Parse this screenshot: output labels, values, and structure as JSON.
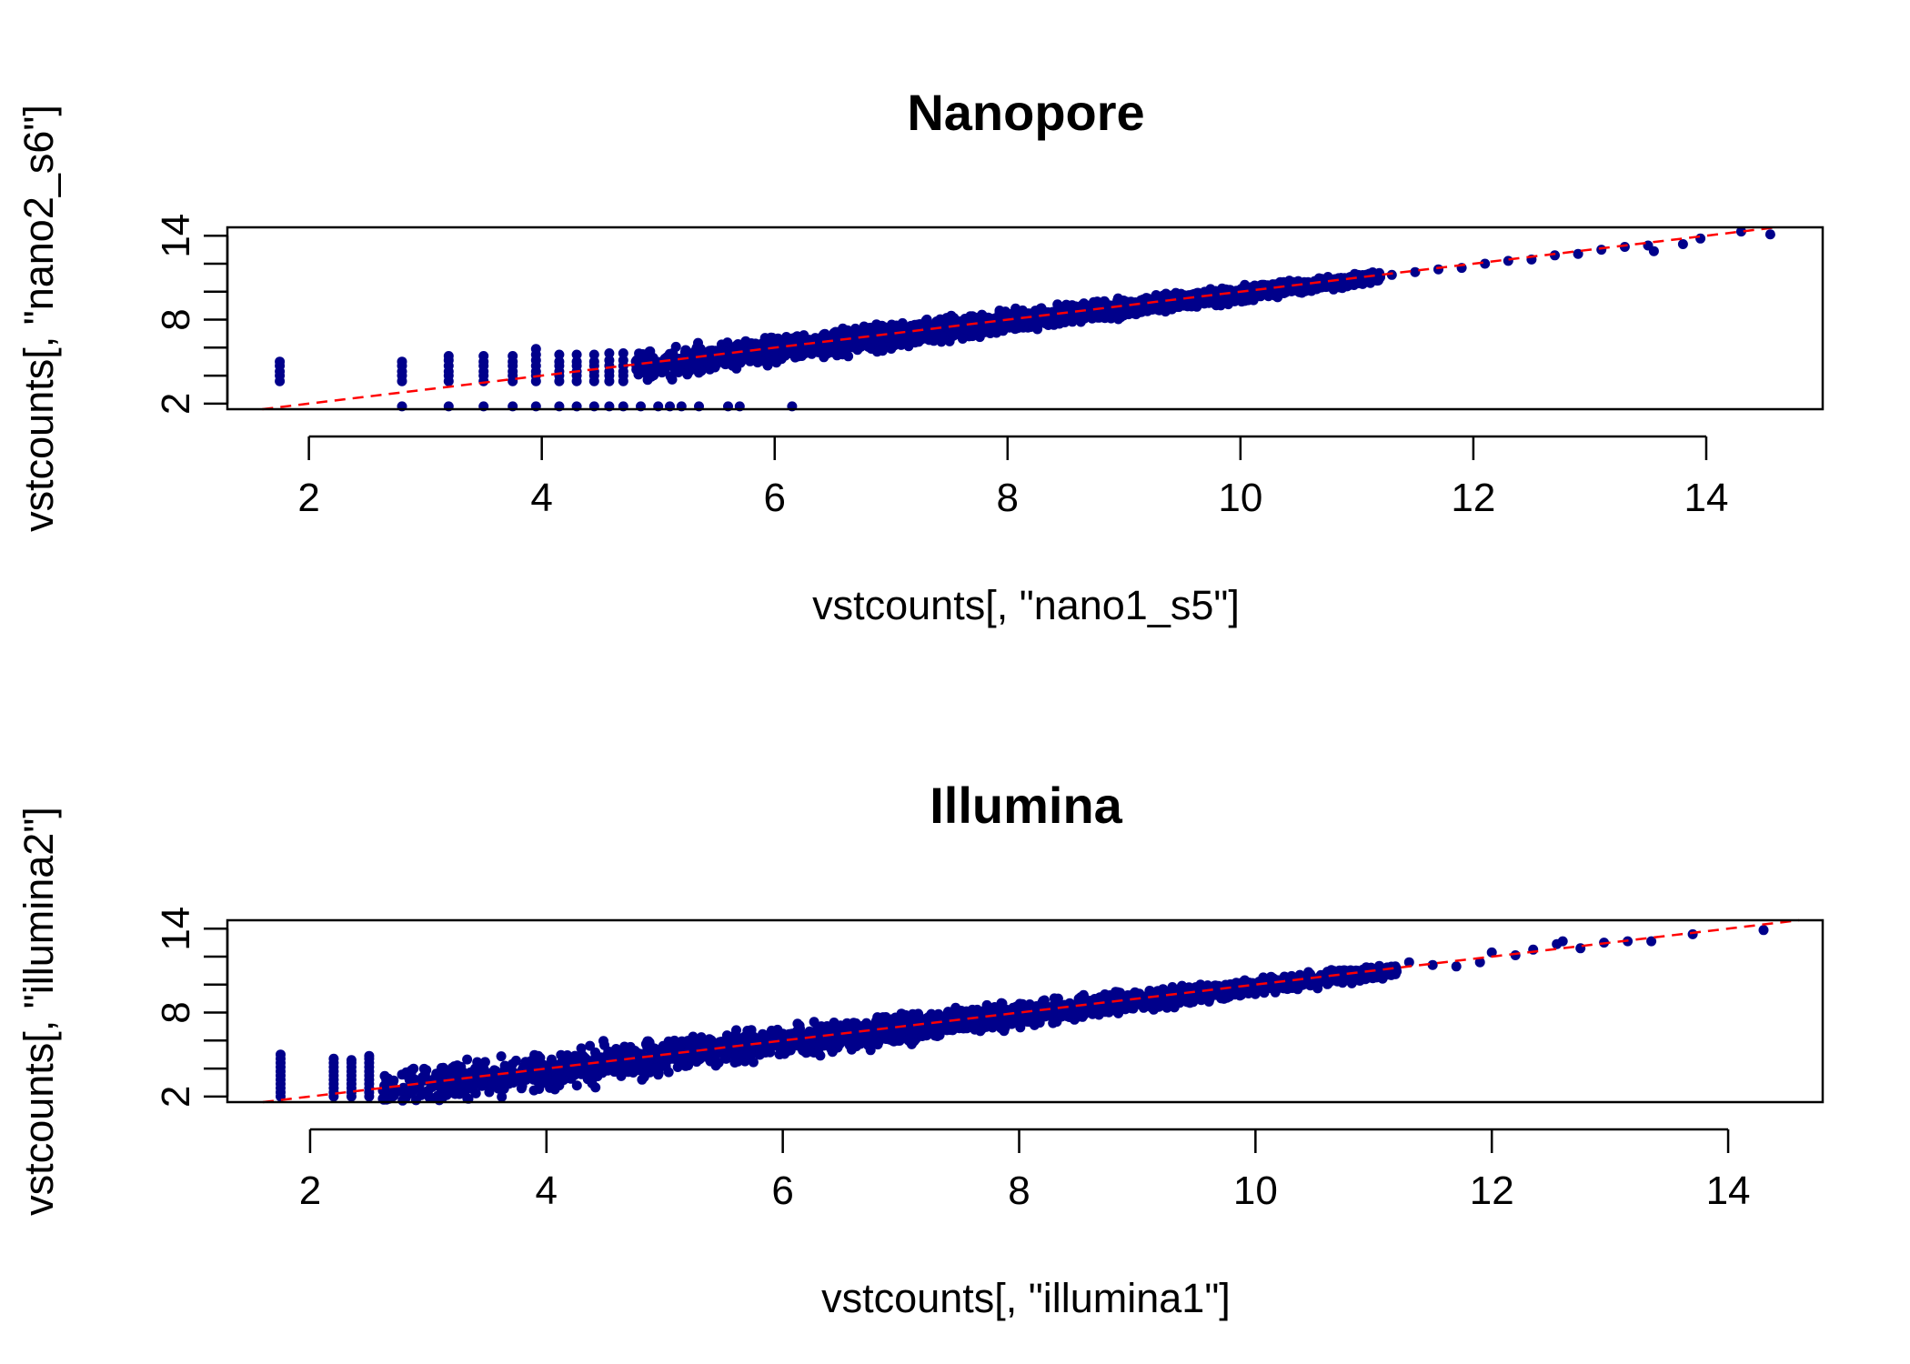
{
  "colors": {
    "points": "#00008b",
    "reference_line": "#ff0000",
    "axes": "#000000",
    "background": "#ffffff"
  },
  "chart_data": [
    {
      "type": "scatter",
      "title": "Nanopore",
      "xlabel": "vstcounts[, \"nano1_s5\"]",
      "ylabel": "vstcounts[, \"nano2_s6\"]",
      "xlim": [
        1.3,
        15.0
      ],
      "ylim": [
        1.6,
        14.6
      ],
      "xticks": [
        2,
        4,
        6,
        8,
        10,
        12,
        14
      ],
      "yticks": [
        2,
        4,
        6,
        8,
        10,
        12,
        14
      ],
      "ytick_labels": [
        "2",
        "8",
        "14"
      ],
      "grid": false,
      "legend": "none",
      "reference_line": {
        "slope": 1,
        "intercept": 0,
        "style": "dashed",
        "color": "#ff0000"
      },
      "point_color": "#00008b",
      "columns": [
        {
          "x": 1.75,
          "y": [
            3.6,
            4.0,
            4.3,
            4.7,
            5.0
          ]
        },
        {
          "x": 2.8,
          "y": [
            1.8,
            3.6,
            4.0,
            4.3,
            4.7,
            5.0
          ]
        },
        {
          "x": 3.2,
          "y": [
            1.8,
            3.6,
            4.0,
            4.3,
            4.7,
            5.1,
            5.4
          ]
        },
        {
          "x": 3.5,
          "y": [
            1.8,
            3.6,
            4.0,
            4.3,
            4.7,
            5.0,
            5.4
          ]
        },
        {
          "x": 3.75,
          "y": [
            1.8,
            3.6,
            4.0,
            4.3,
            4.7,
            5.0,
            5.4
          ]
        },
        {
          "x": 3.95,
          "y": [
            1.8,
            3.6,
            4.0,
            4.3,
            4.7,
            5.1,
            5.5,
            5.9
          ]
        },
        {
          "x": 4.15,
          "y": [
            1.8,
            3.6,
            4.0,
            4.3,
            4.7,
            5.0,
            5.5
          ]
        },
        {
          "x": 4.3,
          "y": [
            1.8,
            3.6,
            4.0,
            4.3,
            4.7,
            5.0,
            5.5
          ]
        },
        {
          "x": 4.45,
          "y": [
            1.8,
            3.6,
            4.0,
            4.3,
            4.7,
            5.0,
            5.5
          ]
        },
        {
          "x": 4.58,
          "y": [
            1.8,
            3.6,
            4.0,
            4.3,
            4.7,
            5.1,
            5.6
          ]
        },
        {
          "x": 4.7,
          "y": [
            1.8,
            3.6,
            4.0,
            4.3,
            4.7,
            5.1,
            5.6
          ]
        }
      ],
      "isolated_points": [
        {
          "x": 4.85,
          "y": 1.8
        },
        {
          "x": 5.0,
          "y": 1.8
        },
        {
          "x": 5.1,
          "y": 1.8
        },
        {
          "x": 5.2,
          "y": 1.8
        },
        {
          "x": 5.35,
          "y": 1.8
        },
        {
          "x": 5.6,
          "y": 1.8
        },
        {
          "x": 5.7,
          "y": 1.8
        },
        {
          "x": 6.15,
          "y": 1.8
        }
      ],
      "main_band": {
        "x_start": 4.8,
        "x_end": 11.2,
        "spread_low": 1.4,
        "spread_high": 0.45
      },
      "high_points": [
        {
          "x": 11.3,
          "y": 11.2
        },
        {
          "x": 11.5,
          "y": 11.4
        },
        {
          "x": 11.7,
          "y": 11.6
        },
        {
          "x": 11.9,
          "y": 11.7
        },
        {
          "x": 12.1,
          "y": 12.0
        },
        {
          "x": 12.3,
          "y": 12.2
        },
        {
          "x": 12.5,
          "y": 12.3
        },
        {
          "x": 12.7,
          "y": 12.6
        },
        {
          "x": 12.9,
          "y": 12.7
        },
        {
          "x": 13.1,
          "y": 13.0
        },
        {
          "x": 13.3,
          "y": 13.2
        },
        {
          "x": 13.5,
          "y": 13.3
        },
        {
          "x": 13.55,
          "y": 12.9
        },
        {
          "x": 13.8,
          "y": 13.4
        },
        {
          "x": 13.95,
          "y": 13.8
        },
        {
          "x": 14.3,
          "y": 14.3
        },
        {
          "x": 14.55,
          "y": 14.1
        }
      ]
    },
    {
      "type": "scatter",
      "title": "Illumina",
      "xlabel": "vstcounts[, \"illumina1\"]",
      "ylabel": "vstcounts[, \"illumina2\"]",
      "xlim": [
        1.3,
        14.8
      ],
      "ylim": [
        1.6,
        14.6
      ],
      "xticks": [
        2,
        4,
        6,
        8,
        10,
        12,
        14
      ],
      "yticks": [
        2,
        4,
        6,
        8,
        10,
        12,
        14
      ],
      "ytick_labels": [
        "2",
        "8",
        "14"
      ],
      "grid": false,
      "legend": "none",
      "reference_line": {
        "slope": 1,
        "intercept": 0,
        "style": "dashed",
        "color": "#ff0000"
      },
      "point_color": "#00008b",
      "columns": [
        {
          "x": 1.75,
          "y": [
            2.0,
            2.3,
            2.6,
            2.9,
            3.2,
            3.5,
            3.8,
            4.1,
            4.4,
            4.7,
            5.0
          ]
        },
        {
          "x": 2.2,
          "y": [
            2.0,
            2.3,
            2.6,
            2.9,
            3.2,
            3.5,
            3.8,
            4.1,
            4.4,
            4.7
          ]
        },
        {
          "x": 2.35,
          "y": [
            2.0,
            2.3,
            2.6,
            2.9,
            3.2,
            3.5,
            3.8,
            4.1,
            4.4,
            4.6
          ]
        },
        {
          "x": 2.5,
          "y": [
            2.0,
            2.3,
            2.6,
            2.9,
            3.2,
            3.5,
            3.8,
            4.1,
            4.4,
            4.7,
            4.9
          ]
        }
      ],
      "isolated_points": [],
      "main_band": {
        "x_start": 2.6,
        "x_end": 11.2,
        "spread_low": 1.9,
        "spread_high": 0.5
      },
      "high_points": [
        {
          "x": 11.3,
          "y": 11.6
        },
        {
          "x": 11.5,
          "y": 11.4
        },
        {
          "x": 11.7,
          "y": 11.3
        },
        {
          "x": 11.9,
          "y": 11.6
        },
        {
          "x": 12.0,
          "y": 12.3
        },
        {
          "x": 12.2,
          "y": 12.1
        },
        {
          "x": 12.35,
          "y": 12.5
        },
        {
          "x": 12.55,
          "y": 12.9
        },
        {
          "x": 12.6,
          "y": 13.1
        },
        {
          "x": 12.75,
          "y": 12.6
        },
        {
          "x": 12.95,
          "y": 13.0
        },
        {
          "x": 13.15,
          "y": 13.1
        },
        {
          "x": 13.35,
          "y": 13.1
        },
        {
          "x": 13.7,
          "y": 13.6
        },
        {
          "x": 14.3,
          "y": 13.9
        }
      ]
    }
  ]
}
